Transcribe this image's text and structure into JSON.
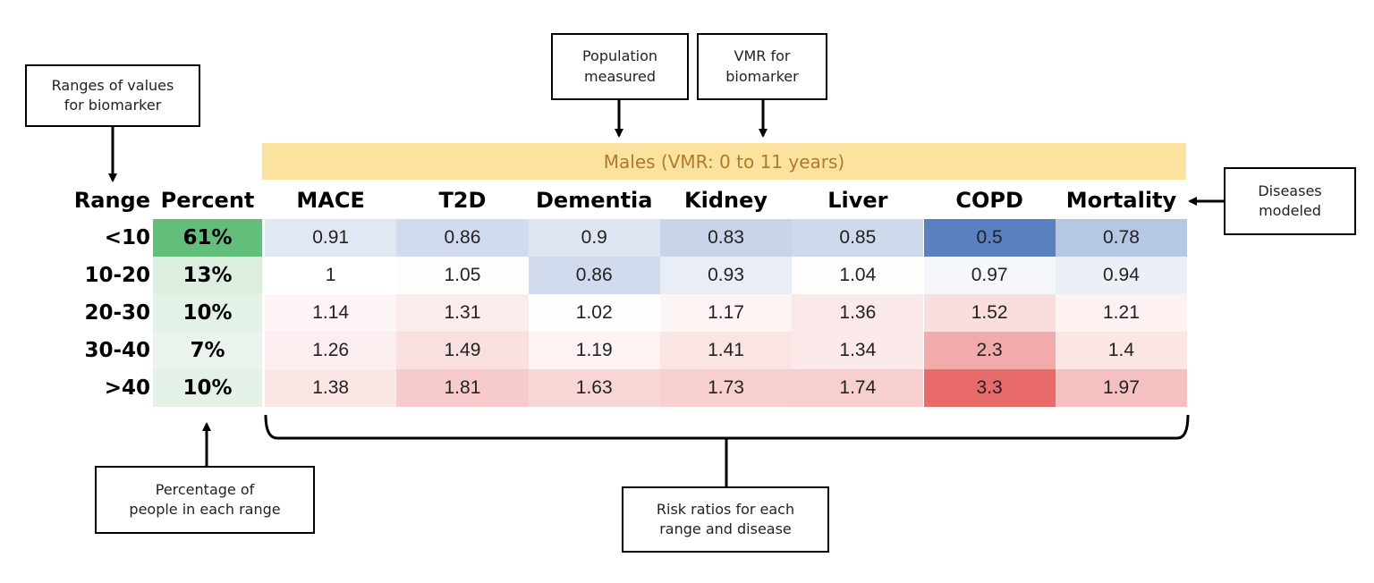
{
  "banner": {
    "text": "Males (VMR: 0 to 11 years)",
    "bg": "#fbe39f",
    "fg": "#b07a2a"
  },
  "headers": {
    "range": "Range",
    "percent": "Percent"
  },
  "callouts": {
    "ranges": "Ranges of values\nfor biomarker",
    "population": "Population\nmeasured",
    "vmr": "VMR for\nbiomarker",
    "diseases": "Diseases\nmodeled",
    "percentage": "Percentage of\npeople in each range",
    "risk": "Risk ratios for each\nrange and disease"
  },
  "chart_data": {
    "type": "heatmap",
    "columns": [
      "MACE",
      "T2D",
      "Dementia",
      "Kidney",
      "Liver",
      "COPD",
      "Mortality"
    ],
    "rows": [
      {
        "range": "<10",
        "percent": "61%",
        "percent_value": 61,
        "values": [
          "0.91",
          "0.86",
          "0.9",
          "0.83",
          "0.85",
          "0.5",
          "0.78"
        ]
      },
      {
        "range": "10-20",
        "percent": "13%",
        "percent_value": 13,
        "values": [
          "1",
          "1.05",
          "0.86",
          "0.93",
          "1.04",
          "0.97",
          "0.94"
        ]
      },
      {
        "range": "20-30",
        "percent": "10%",
        "percent_value": 10,
        "values": [
          "1.14",
          "1.31",
          "1.02",
          "1.17",
          "1.36",
          "1.52",
          "1.21"
        ]
      },
      {
        "range": "30-40",
        "percent": "7%",
        "percent_value": 7,
        "values": [
          "1.26",
          "1.49",
          "1.19",
          "1.41",
          "1.34",
          "2.3",
          "1.4"
        ]
      },
      {
        "range": ">40",
        "percent": "10%",
        "percent_value": 10,
        "values": [
          "1.38",
          "1.81",
          "1.63",
          "1.73",
          "1.74",
          "3.3",
          "1.97"
        ]
      }
    ],
    "colors": {
      "low": "#5a80c0",
      "mid": "#ffffff",
      "high": "#e86a6a",
      "percent_high": "#63be7b"
    }
  }
}
